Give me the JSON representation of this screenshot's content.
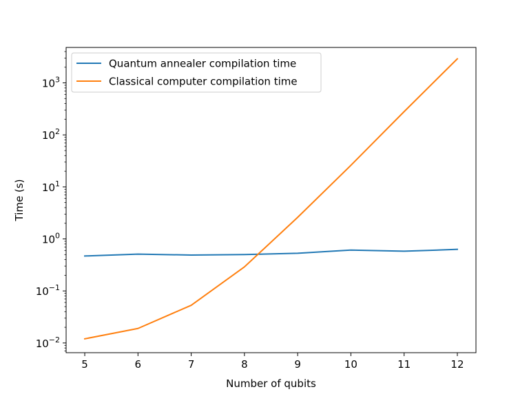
{
  "chart_data": {
    "type": "line",
    "title": "",
    "xlabel": "Number of qubits",
    "ylabel": "Time (s)",
    "yscale": "log",
    "x": [
      5,
      6,
      7,
      8,
      9,
      10,
      11,
      12
    ],
    "xlim": [
      4.65,
      12.35
    ],
    "ylim": [
      0.0065,
      4800
    ],
    "xticks": [
      "5",
      "6",
      "7",
      "8",
      "9",
      "10",
      "11",
      "12"
    ],
    "yticks": [
      {
        "base": "10",
        "exp": "−2",
        "value": 0.01
      },
      {
        "base": "10",
        "exp": "−1",
        "value": 0.1
      },
      {
        "base": "10",
        "exp": "0",
        "value": 1
      },
      {
        "base": "10",
        "exp": "1",
        "value": 10
      },
      {
        "base": "10",
        "exp": "2",
        "value": 100
      },
      {
        "base": "10",
        "exp": "3",
        "value": 1000
      }
    ],
    "grid": false,
    "legend_position": "top-left",
    "series": [
      {
        "name": "Quantum annealer compilation time",
        "color": "#1f77b4",
        "values": [
          0.47,
          0.51,
          0.49,
          0.5,
          0.53,
          0.61,
          0.58,
          0.63
        ]
      },
      {
        "name": "Classical computer compilation time",
        "color": "#ff7f0e",
        "values": [
          0.012,
          0.019,
          0.053,
          0.29,
          2.6,
          26,
          280,
          2900
        ]
      }
    ]
  }
}
